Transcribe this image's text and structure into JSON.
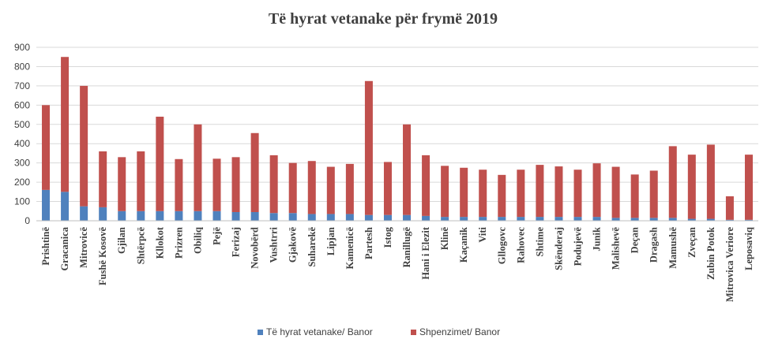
{
  "chart_data": {
    "type": "bar",
    "stacked": true,
    "title": "Të hyrat vetanake për frymë 2019",
    "xlabel": "",
    "ylabel": "",
    "ylim": [
      0,
      900
    ],
    "yticks": [
      0,
      100,
      200,
      300,
      400,
      500,
      600,
      700,
      800,
      900
    ],
    "grid": true,
    "legend_position": "bottom",
    "categories": [
      "Prishtinë",
      "Gracanica",
      "Mitrovicë",
      "Fushë Kosovë",
      "Gjilan",
      "Shtërpcë",
      "Kllokot",
      "Prizren",
      "Obiliq",
      "Pejë",
      "Ferizaj",
      "Novobërd",
      "Vushtrri",
      "Gjakovë",
      "Suharekë",
      "Lipjan",
      "Kamenicë",
      "Partesh",
      "Istog",
      "Ranillugë",
      "Hani i Elezit",
      "Klinë",
      "Kaçanik",
      "Viti",
      "Gllogovc",
      "Rahovec",
      "Shtime",
      "Skënderaj",
      "Podujevë",
      "Junik",
      "Malishevë",
      "Deçan",
      "Dragash",
      "Mamushë",
      "Zveçan",
      "Zubin Potok",
      "Mitrovica Veriore",
      "Leposaviq"
    ],
    "series": [
      {
        "name": "Të hyrat vetanake/ Banor",
        "color": "#4f81bd",
        "values": [
          160,
          150,
          75,
          70,
          50,
          50,
          50,
          50,
          50,
          50,
          45,
          45,
          40,
          40,
          35,
          35,
          35,
          30,
          30,
          30,
          25,
          20,
          20,
          20,
          20,
          20,
          20,
          20,
          20,
          20,
          15,
          15,
          15,
          15,
          10,
          10,
          5,
          5
        ]
      },
      {
        "name": "Shpenzimet/ Banor",
        "color": "#c0504d",
        "values": [
          440,
          700,
          625,
          290,
          280,
          310,
          490,
          270,
          450,
          272,
          285,
          410,
          300,
          260,
          275,
          245,
          260,
          695,
          275,
          470,
          315,
          265,
          255,
          245,
          218,
          245,
          270,
          262,
          245,
          278,
          265,
          225,
          245,
          372,
          333,
          385,
          122,
          338
        ]
      }
    ]
  }
}
